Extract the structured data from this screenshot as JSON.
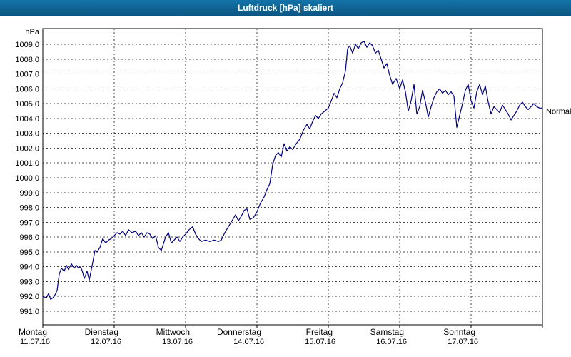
{
  "window": {
    "title": "Luftdruck [hPa] skaliert"
  },
  "colors": {
    "titlebar_top": "#1373a9",
    "titlebar_bottom": "#0c567f",
    "grid": "#444444",
    "axis": "#000000",
    "line": "#000080",
    "background": "#ffffff"
  },
  "chart_data": {
    "type": "line",
    "title": "Luftdruck [hPa] skaliert",
    "ylabel": "hPa",
    "ylim": [
      991,
      1009
    ],
    "ytick_step": 1,
    "decimal_separator": ",",
    "xlim": [
      0,
      7
    ],
    "grid": "dashed",
    "legend_position": "none",
    "days": [
      {
        "name": "Montag",
        "date": "11.07.16"
      },
      {
        "name": "Dienstag",
        "date": "12.07.16"
      },
      {
        "name": "Mittwoch",
        "date": "13.07.16"
      },
      {
        "name": "Donnerstag",
        "date": "14.07.16"
      },
      {
        "name": "Freitag",
        "date": "15.07.16"
      },
      {
        "name": "Samstag",
        "date": "16.07.16"
      },
      {
        "name": "Sonntag",
        "date": "17.07.16"
      }
    ],
    "annotations": [
      {
        "label": "Normal",
        "value": 1004.5
      }
    ],
    "series": [
      {
        "name": "Luftdruck",
        "color": "#000080",
        "points": [
          [
            0.0,
            992.0
          ],
          [
            0.05,
            991.9
          ],
          [
            0.08,
            992.2
          ],
          [
            0.11,
            991.8
          ],
          [
            0.14,
            991.9
          ],
          [
            0.17,
            992.1
          ],
          [
            0.2,
            992.4
          ],
          [
            0.23,
            993.5
          ],
          [
            0.26,
            993.9
          ],
          [
            0.3,
            993.7
          ],
          [
            0.33,
            994.1
          ],
          [
            0.36,
            993.8
          ],
          [
            0.4,
            994.2
          ],
          [
            0.44,
            993.9
          ],
          [
            0.47,
            994.1
          ],
          [
            0.5,
            993.9
          ],
          [
            0.53,
            994.0
          ],
          [
            0.56,
            993.6
          ],
          [
            0.58,
            993.2
          ],
          [
            0.62,
            993.7
          ],
          [
            0.65,
            993.1
          ],
          [
            0.7,
            994.3
          ],
          [
            0.73,
            995.1
          ],
          [
            0.76,
            995.0
          ],
          [
            0.8,
            995.3
          ],
          [
            0.84,
            995.9
          ],
          [
            0.88,
            995.6
          ],
          [
            0.92,
            995.8
          ],
          [
            0.96,
            995.9
          ],
          [
            1.0,
            996.1
          ],
          [
            1.04,
            996.3
          ],
          [
            1.08,
            996.2
          ],
          [
            1.12,
            996.4
          ],
          [
            1.16,
            996.1
          ],
          [
            1.2,
            996.5
          ],
          [
            1.25,
            996.3
          ],
          [
            1.3,
            996.4
          ],
          [
            1.34,
            996.1
          ],
          [
            1.38,
            996.3
          ],
          [
            1.42,
            996.0
          ],
          [
            1.46,
            996.3
          ],
          [
            1.5,
            996.2
          ],
          [
            1.54,
            995.9
          ],
          [
            1.58,
            996.1
          ],
          [
            1.62,
            995.3
          ],
          [
            1.66,
            995.1
          ],
          [
            1.72,
            996.0
          ],
          [
            1.76,
            996.3
          ],
          [
            1.8,
            995.6
          ],
          [
            1.84,
            995.8
          ],
          [
            1.88,
            996.0
          ],
          [
            1.92,
            995.7
          ],
          [
            1.96,
            996.0
          ],
          [
            2.0,
            996.2
          ],
          [
            2.05,
            996.5
          ],
          [
            2.1,
            996.7
          ],
          [
            2.14,
            996.2
          ],
          [
            2.18,
            995.9
          ],
          [
            2.22,
            995.7
          ],
          [
            2.28,
            995.8
          ],
          [
            2.34,
            995.7
          ],
          [
            2.4,
            995.8
          ],
          [
            2.46,
            995.7
          ],
          [
            2.5,
            995.8
          ],
          [
            2.55,
            996.3
          ],
          [
            2.6,
            996.7
          ],
          [
            2.65,
            997.1
          ],
          [
            2.7,
            997.5
          ],
          [
            2.74,
            997.1
          ],
          [
            2.78,
            997.4
          ],
          [
            2.82,
            997.8
          ],
          [
            2.86,
            997.9
          ],
          [
            2.9,
            997.2
          ],
          [
            2.95,
            997.3
          ],
          [
            3.0,
            997.7
          ],
          [
            3.05,
            998.3
          ],
          [
            3.1,
            998.7
          ],
          [
            3.14,
            999.2
          ],
          [
            3.18,
            999.6
          ],
          [
            3.22,
            1000.9
          ],
          [
            3.26,
            1001.5
          ],
          [
            3.3,
            1001.7
          ],
          [
            3.34,
            1001.4
          ],
          [
            3.38,
            1002.3
          ],
          [
            3.42,
            1001.8
          ],
          [
            3.46,
            1002.1
          ],
          [
            3.5,
            1001.9
          ],
          [
            3.55,
            1002.3
          ],
          [
            3.6,
            1002.6
          ],
          [
            3.65,
            1003.2
          ],
          [
            3.7,
            1003.6
          ],
          [
            3.74,
            1003.3
          ],
          [
            3.78,
            1003.8
          ],
          [
            3.82,
            1004.2
          ],
          [
            3.86,
            1004.0
          ],
          [
            3.9,
            1004.3
          ],
          [
            3.95,
            1004.5
          ],
          [
            4.0,
            1004.7
          ],
          [
            4.05,
            1005.3
          ],
          [
            4.08,
            1005.7
          ],
          [
            4.12,
            1005.4
          ],
          [
            4.16,
            1006.0
          ],
          [
            4.2,
            1006.4
          ],
          [
            4.24,
            1007.2
          ],
          [
            4.27,
            1008.7
          ],
          [
            4.3,
            1008.9
          ],
          [
            4.34,
            1008.4
          ],
          [
            4.38,
            1009.0
          ],
          [
            4.42,
            1008.7
          ],
          [
            4.46,
            1009.1
          ],
          [
            4.5,
            1009.2
          ],
          [
            4.54,
            1008.8
          ],
          [
            4.58,
            1009.1
          ],
          [
            4.62,
            1008.9
          ],
          [
            4.66,
            1008.4
          ],
          [
            4.7,
            1008.6
          ],
          [
            4.74,
            1008.0
          ],
          [
            4.78,
            1007.4
          ],
          [
            4.82,
            1007.7
          ],
          [
            4.86,
            1006.9
          ],
          [
            4.9,
            1006.3
          ],
          [
            4.95,
            1006.7
          ],
          [
            5.0,
            1006.0
          ],
          [
            5.04,
            1006.6
          ],
          [
            5.08,
            1005.8
          ],
          [
            5.12,
            1004.5
          ],
          [
            5.16,
            1005.2
          ],
          [
            5.2,
            1006.3
          ],
          [
            5.24,
            1004.3
          ],
          [
            5.28,
            1004.8
          ],
          [
            5.32,
            1005.9
          ],
          [
            5.36,
            1005.1
          ],
          [
            5.4,
            1004.1
          ],
          [
            5.44,
            1004.8
          ],
          [
            5.48,
            1005.4
          ],
          [
            5.52,
            1005.8
          ],
          [
            5.56,
            1006.0
          ],
          [
            5.6,
            1005.7
          ],
          [
            5.64,
            1005.9
          ],
          [
            5.68,
            1005.6
          ],
          [
            5.72,
            1005.8
          ],
          [
            5.76,
            1005.5
          ],
          [
            5.8,
            1003.4
          ],
          [
            5.84,
            1004.2
          ],
          [
            5.88,
            1005.0
          ],
          [
            5.92,
            1005.9
          ],
          [
            5.96,
            1006.3
          ],
          [
            6.0,
            1005.2
          ],
          [
            6.04,
            1004.7
          ],
          [
            6.08,
            1005.8
          ],
          [
            6.12,
            1006.3
          ],
          [
            6.16,
            1005.6
          ],
          [
            6.2,
            1006.2
          ],
          [
            6.24,
            1005.1
          ],
          [
            6.28,
            1004.3
          ],
          [
            6.32,
            1004.8
          ],
          [
            6.36,
            1004.6
          ],
          [
            6.4,
            1004.4
          ],
          [
            6.44,
            1004.9
          ],
          [
            6.48,
            1004.6
          ],
          [
            6.52,
            1004.3
          ],
          [
            6.56,
            1003.9
          ],
          [
            6.6,
            1004.2
          ],
          [
            6.64,
            1004.5
          ],
          [
            6.68,
            1004.9
          ],
          [
            6.72,
            1005.1
          ],
          [
            6.76,
            1004.8
          ],
          [
            6.8,
            1004.6
          ],
          [
            6.84,
            1004.8
          ],
          [
            6.88,
            1005.0
          ],
          [
            6.92,
            1004.8
          ],
          [
            6.96,
            1004.7
          ],
          [
            7.0,
            1004.7
          ]
        ]
      }
    ]
  }
}
